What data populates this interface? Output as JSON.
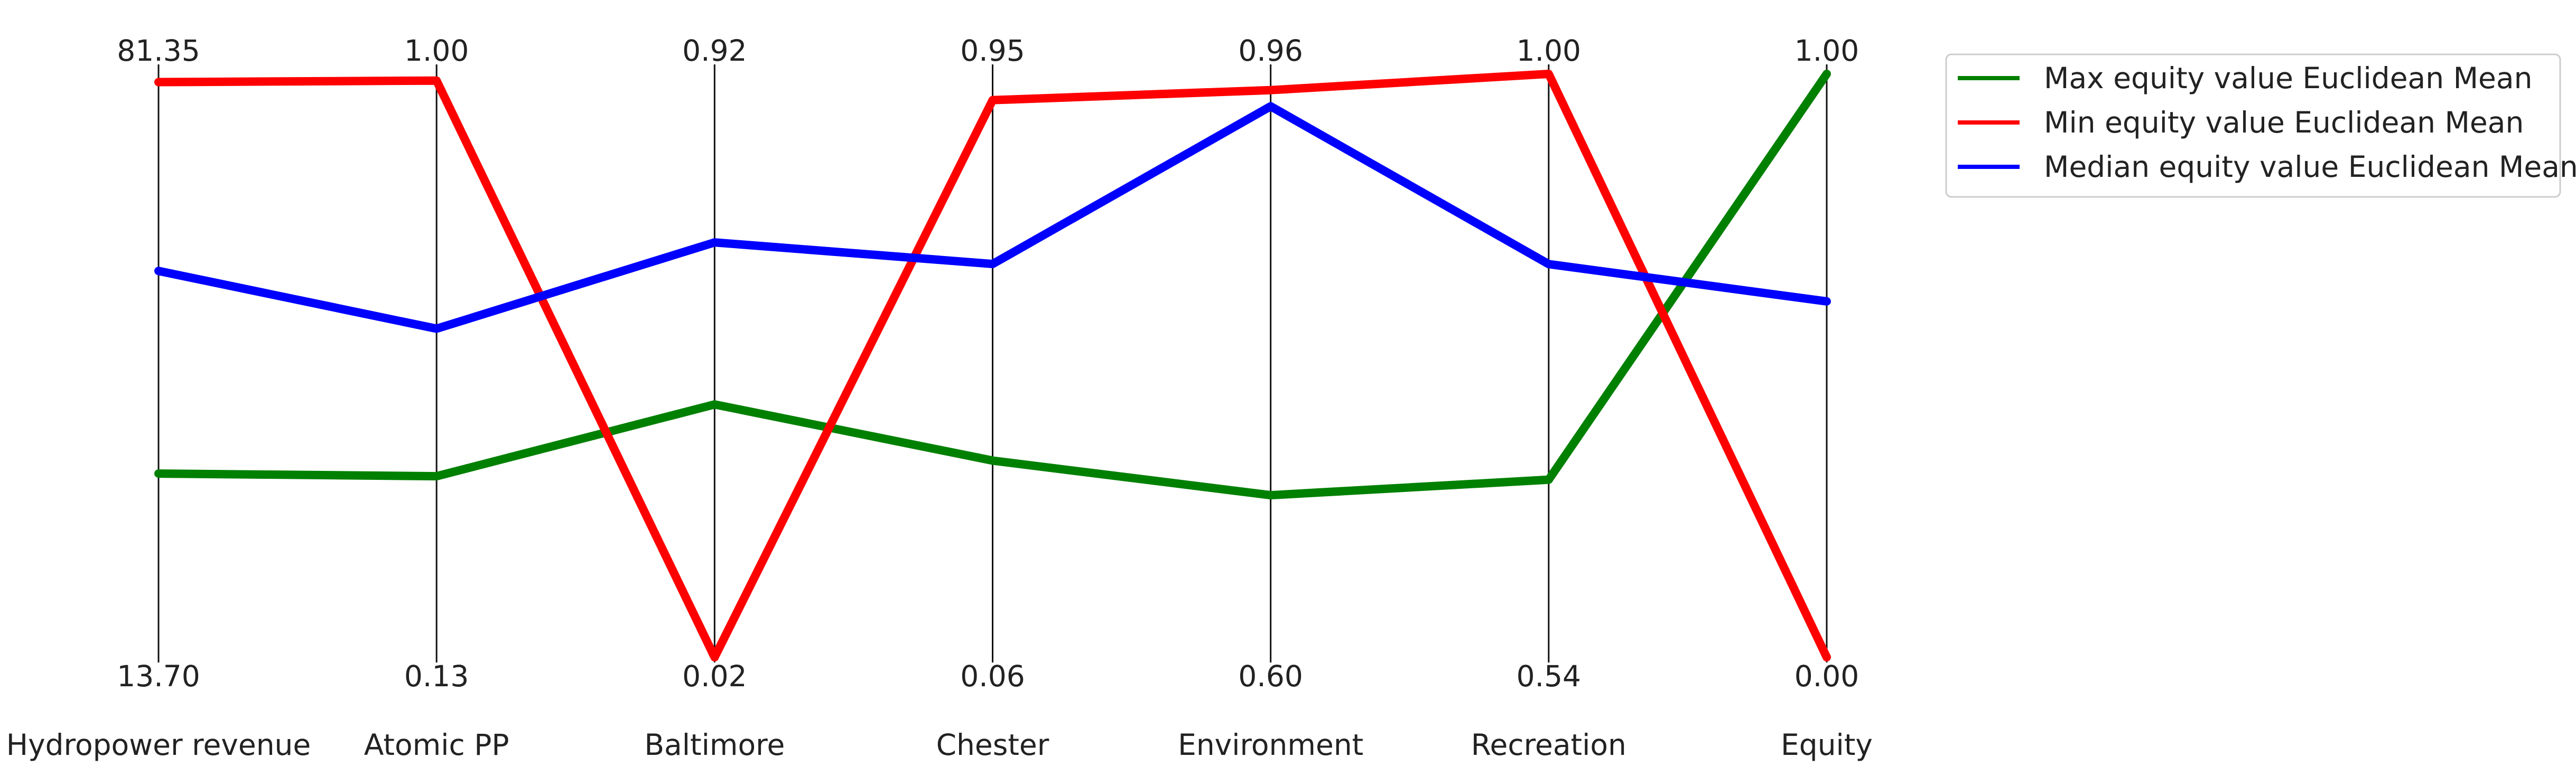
{
  "chart_data": {
    "type": "line",
    "title": "",
    "axes": [
      {
        "name": "Hydropower revenue",
        "max_label": "81.35",
        "min_label": "13.70",
        "max": 81.35,
        "min": 13.7
      },
      {
        "name": "Atomic PP",
        "max_label": "1.00",
        "min_label": "0.13",
        "max": 1.0,
        "min": 0.13
      },
      {
        "name": "Baltimore",
        "max_label": "0.92",
        "min_label": "0.02",
        "max": 0.92,
        "min": 0.02
      },
      {
        "name": "Chester",
        "max_label": "0.95",
        "min_label": "0.06",
        "max": 0.95,
        "min": 0.06
      },
      {
        "name": "Environment",
        "max_label": "0.96",
        "min_label": "0.60",
        "max": 0.96,
        "min": 0.6
      },
      {
        "name": "Recreation",
        "max_label": "1.00",
        "min_label": "0.54",
        "max": 1.0,
        "min": 0.54
      },
      {
        "name": "Equity",
        "max_label": "1.00",
        "min_label": "0.00",
        "max": 1.0,
        "min": 0.0
      }
    ],
    "series": [
      {
        "name": "Max equity value Euclidean Mean",
        "color": "#008000",
        "values": [
          35.0,
          0.4,
          0.41,
          0.36,
          0.7,
          0.68,
          1.0
        ]
      },
      {
        "name": "Min equity value Euclidean Mean",
        "color": "#ff0000",
        "values": [
          80.4,
          0.99,
          0.02,
          0.91,
          0.95,
          1.0,
          0.0
        ]
      },
      {
        "name": "Median equity value Euclidean Mean",
        "color": "#0000ff",
        "values": [
          58.5,
          0.62,
          0.66,
          0.66,
          0.94,
          0.85,
          0.61
        ]
      }
    ],
    "legend_position": "top-right",
    "grid": false
  }
}
